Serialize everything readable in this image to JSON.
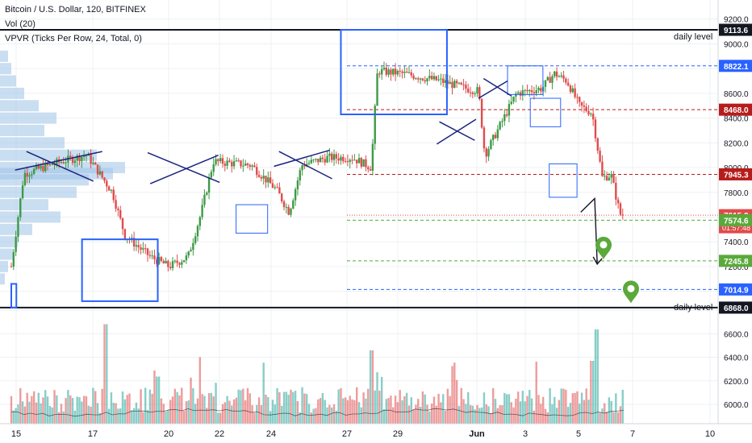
{
  "header": {
    "title": "Bitcoin / U.S. Dollar, 120, BITFINEX",
    "vol_label": "Vol (20)",
    "vpvr_label": "VPVR (Ticks Per Row, 24, Total, 0)"
  },
  "colors": {
    "up": "#26a69a",
    "up_candle": "#3d9a45",
    "down": "#e04b4b",
    "box": "#2962ff",
    "level_line": "#131722",
    "profile": "#9fc3e7",
    "current_price": "#e04b4b",
    "target": "#5aa93a"
  },
  "chart_data": [
    {
      "type": "candlestick",
      "title": "Bitcoin / U.S. Dollar, 120, BITFINEX",
      "x_ticks": [
        "15",
        "17",
        "20",
        "22",
        "24",
        "27",
        "29",
        "Jun",
        "3",
        "5",
        "7",
        "10"
      ],
      "y_ticks": [
        9200,
        9000,
        8800,
        8600,
        8400,
        8200,
        8000,
        7800,
        7600,
        7400,
        7200,
        7000,
        6800,
        6600,
        6400,
        6200,
        6000
      ],
      "ylim": [
        6000,
        9200
      ],
      "price_path": [
        {
          "t": 0,
          "p": 7200
        },
        {
          "t": 1,
          "p": 7950
        },
        {
          "t": 4,
          "p": 8050
        },
        {
          "t": 6,
          "p": 8100
        },
        {
          "t": 8,
          "p": 7800
        },
        {
          "t": 9,
          "p": 7450
        },
        {
          "t": 11,
          "p": 7280
        },
        {
          "t": 12.5,
          "p": 7200
        },
        {
          "t": 14,
          "p": 7280
        },
        {
          "t": 15,
          "p": 7620
        },
        {
          "t": 16,
          "p": 8050
        },
        {
          "t": 19,
          "p": 8020
        },
        {
          "t": 21,
          "p": 7820
        },
        {
          "t": 22,
          "p": 7640
        },
        {
          "t": 23,
          "p": 8020
        },
        {
          "t": 25,
          "p": 8080
        },
        {
          "t": 27,
          "p": 8080
        },
        {
          "t": 28.5,
          "p": 8000
        },
        {
          "t": 29,
          "p": 8780
        },
        {
          "t": 31,
          "p": 8760
        },
        {
          "t": 34,
          "p": 8700
        },
        {
          "t": 36,
          "p": 8640
        },
        {
          "t": 37,
          "p": 8620
        },
        {
          "t": 37.5,
          "p": 8100
        },
        {
          "t": 38.5,
          "p": 8300
        },
        {
          "t": 40,
          "p": 8600
        },
        {
          "t": 42,
          "p": 8640
        },
        {
          "t": 43,
          "p": 8760
        },
        {
          "t": 44,
          "p": 8700
        },
        {
          "t": 45,
          "p": 8500
        },
        {
          "t": 46,
          "p": 8440
        },
        {
          "t": 46.8,
          "p": 7920
        },
        {
          "t": 47.5,
          "p": 7940
        },
        {
          "t": 48.2,
          "p": 7625
        },
        {
          "t": 48.5,
          "p": 7615.3
        }
      ],
      "levels": [
        {
          "value": 9113.6,
          "label": "9113.6",
          "style": "solid",
          "color": "#131722",
          "text": "daily level"
        },
        {
          "value": 8822.1,
          "label": "8822.1",
          "style": "dashed",
          "color": "#2962ff"
        },
        {
          "value": 8468.0,
          "label": "8468.0",
          "style": "dashed",
          "color": "#b71c1c"
        },
        {
          "value": 7945.3,
          "label": "7945.3",
          "style": "dashed",
          "color": "#b71c1c"
        },
        {
          "value": 7615.3,
          "label": "7615.3",
          "style": "dotted",
          "color": "#e04b4b",
          "countdown": "01:57:48"
        },
        {
          "value": 7574.6,
          "label": "7574.6",
          "style": "dashed",
          "color": "#5aa93a"
        },
        {
          "value": 7245.8,
          "label": "7245.8",
          "style": "dashed",
          "color": "#5aa93a"
        },
        {
          "value": 7014.9,
          "label": "7014.9",
          "style": "dashed",
          "color": "#2962ff"
        },
        {
          "value": 6868.0,
          "label": "6868.0",
          "style": "solid",
          "color": "#131722",
          "text": "daily level"
        }
      ],
      "current_price": 7615.3,
      "countdown": "01:57:48",
      "targets": [
        7245.8,
        7014.9
      ]
    },
    {
      "type": "bar",
      "title": "Vol (20)",
      "ylabel": "",
      "note": "volume histogram; heights are relative",
      "peaks": [
        {
          "t": 7.5,
          "rel": 0.95
        },
        {
          "t": 11.5,
          "rel": 0.45
        },
        {
          "t": 28.5,
          "rel": 0.7
        },
        {
          "t": 35,
          "rel": 0.55
        },
        {
          "t": 46,
          "rel": 0.6
        },
        {
          "t": 46.4,
          "rel": 0.9
        }
      ]
    }
  ]
}
